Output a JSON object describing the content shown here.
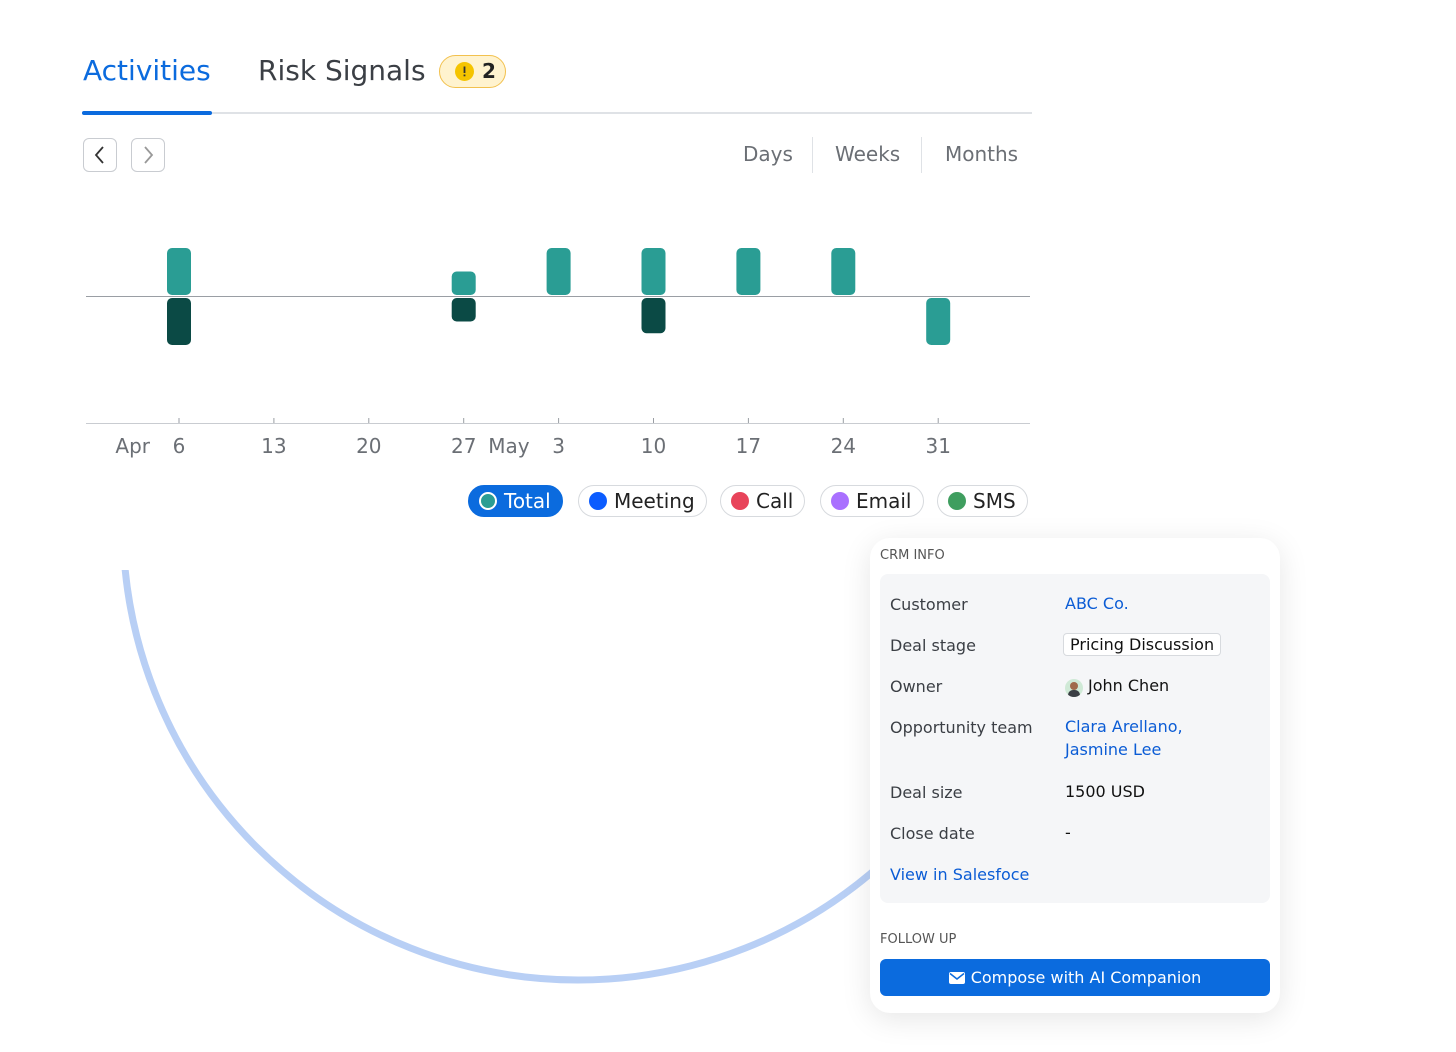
{
  "tabs": [
    {
      "label": "Activities",
      "active": true
    },
    {
      "label": "Risk Signals",
      "active": false,
      "badge": 2
    }
  ],
  "views": {
    "options": [
      "Days",
      "Weeks",
      "Months"
    ],
    "selected": "Weeks"
  },
  "chart_data": {
    "type": "bar",
    "x": [
      {
        "month": "Apr",
        "day": 6
      },
      {
        "month": null,
        "day": 13
      },
      {
        "month": null,
        "day": 20
      },
      {
        "month": null,
        "day": 27
      },
      {
        "month": "May",
        "day": 3
      },
      {
        "month": null,
        "day": 10
      },
      {
        "month": null,
        "day": 17
      },
      {
        "month": null,
        "day": 24
      },
      {
        "month": null,
        "day": 31
      }
    ],
    "series": [
      {
        "color": "#2a9d94",
        "direction": "up",
        "values": [
          2,
          null,
          null,
          1,
          2,
          2,
          2,
          2,
          null
        ]
      },
      {
        "color": "#0b4a45",
        "direction": "down",
        "values": [
          2,
          null,
          null,
          1,
          null,
          1.5,
          null,
          null,
          2
        ],
        "colors": [
          "#0b4a45",
          null,
          null,
          "#0b4a45",
          null,
          "#0b4a45",
          null,
          null,
          "#2a9d94"
        ]
      }
    ],
    "legend": [
      {
        "name": "Total",
        "color": "#2a9d94",
        "active": true
      },
      {
        "name": "Meeting",
        "color": "#0b5cff",
        "active": false
      },
      {
        "name": "Call",
        "color": "#e8445a",
        "active": false
      },
      {
        "name": "Email",
        "color": "#a970ff",
        "active": false
      },
      {
        "name": "SMS",
        "color": "#3f9e5f",
        "active": false
      }
    ]
  },
  "crm": {
    "title": "CRM INFO",
    "rows": [
      {
        "label": "Customer",
        "value": "ABC Co.",
        "link": true
      },
      {
        "label": "Deal stage",
        "value": "Pricing Discussion",
        "tag": true
      },
      {
        "label": "Owner",
        "value": "John Chen",
        "avatar": true
      },
      {
        "label": "Opportunity team",
        "value": "Clara Arellano, Jasmine Lee",
        "link": true
      },
      {
        "label": "Deal size",
        "value": "1500 USD"
      },
      {
        "label": "Close date",
        "value": "-"
      }
    ],
    "link": "View in Salesfoce"
  },
  "follow_up": {
    "title": "FOLLOW UP",
    "button": "Compose with AI Companion"
  }
}
